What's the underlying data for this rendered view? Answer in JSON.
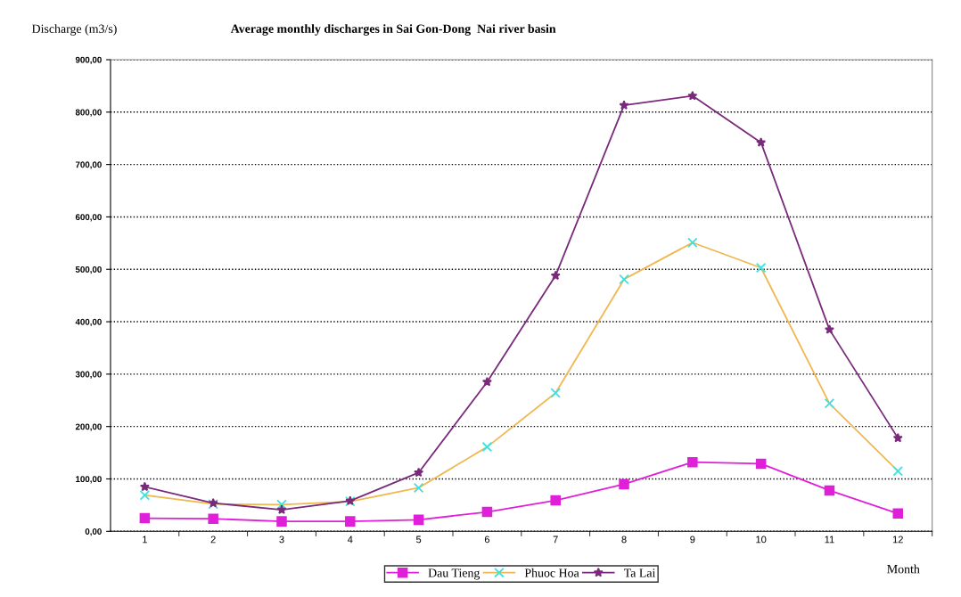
{
  "chart_data": {
    "type": "line",
    "title": "Average monthly discharges in Sai Gon-Dong  Nai river basin",
    "ylabel": "Discharge (m3/s)",
    "xlabel": "Month",
    "categories": [
      "1",
      "2",
      "3",
      "4",
      "5",
      "6",
      "7",
      "8",
      "9",
      "10",
      "11",
      "12"
    ],
    "series": [
      {
        "name": "Dau Tieng",
        "color": "#e020d8",
        "marker": "square",
        "values": [
          25,
          24,
          19,
          19,
          22,
          37,
          59,
          90,
          132,
          129,
          78,
          34
        ]
      },
      {
        "name": "Phuoc Hoa",
        "color": "#f0b850",
        "colors": [
          "#40e0e0",
          "#40e0e0",
          "#40e0e0",
          "#40e0e0",
          "#40e0e0",
          "#40e0e0",
          "#40e0e0",
          "#40e0e0",
          "#40e0e0",
          "#40e0e0",
          "#40e0e0",
          "#40e0e0"
        ],
        "marker": "cross",
        "values": [
          69,
          52,
          51,
          57,
          83,
          161,
          264,
          481,
          551,
          503,
          244,
          115
        ]
      },
      {
        "name": "Ta Lai",
        "color": "#7a2a7a",
        "marker": "star",
        "values": [
          85,
          54,
          41,
          58,
          112,
          285,
          488,
          813,
          831,
          742,
          385,
          178
        ]
      }
    ],
    "ylim": [
      0,
      900
    ],
    "yticks": [
      {
        "value": 0,
        "label": "0,00"
      },
      {
        "value": 100,
        "label": "100,00"
      },
      {
        "value": 200,
        "label": "200,00"
      },
      {
        "value": 300,
        "label": "300,00"
      },
      {
        "value": 400,
        "label": "400,00"
      },
      {
        "value": 500,
        "label": "500,00"
      },
      {
        "value": 600,
        "label": "600,00"
      },
      {
        "value": 700,
        "label": "700,00"
      },
      {
        "value": 800,
        "label": "800,00"
      },
      {
        "value": 900,
        "label": "900,00"
      }
    ],
    "grid": "y",
    "legend": "bottom"
  }
}
